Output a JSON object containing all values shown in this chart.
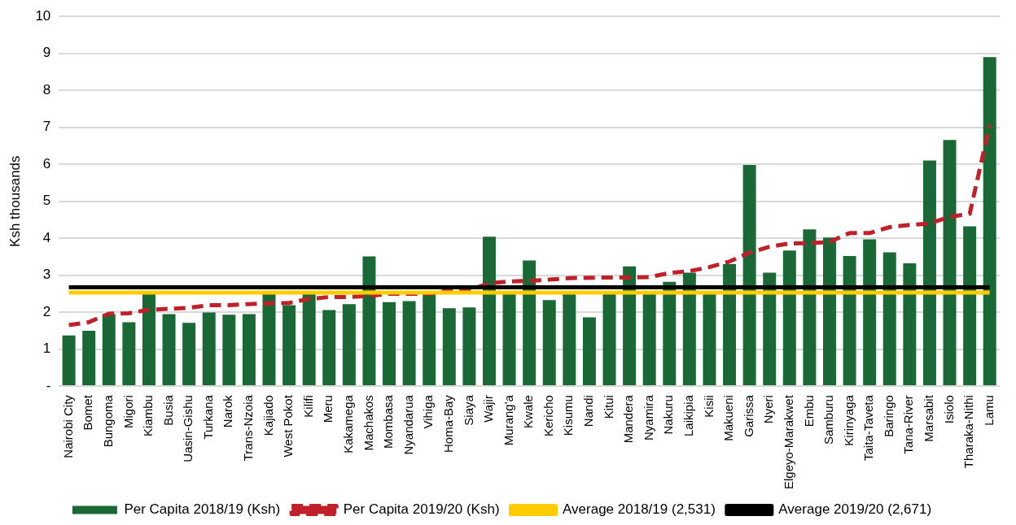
{
  "chart_data": {
    "type": "bar",
    "ylabel": "Ksh thousands",
    "categories": [
      "Nairobi City",
      "Bomet",
      "Bungoma",
      "Migori",
      "Kiambu",
      "Busia",
      "Uasin-Gishu",
      "Turkana",
      "Narok",
      "Trans-Nzoia",
      "Kajiado",
      "West Pokot",
      "Kilifi",
      "Meru",
      "Kakamega",
      "Machakos",
      "Mombasa",
      "Nyandarua",
      "Vihiga",
      "Homa-Bay",
      "Siaya",
      "Wajir",
      "Murang'a",
      "Kwale",
      "Kericho",
      "Kisumu",
      "Nandi",
      "Kitui",
      "Mandera",
      "Nyamira",
      "Nakuru",
      "Laikipia",
      "Kisii",
      "Makueni",
      "Garissa",
      "Nyeri",
      "Elgeyo-Marakwet",
      "Embu",
      "Samburu",
      "Kirinyaga",
      "Taita-Taveta",
      "Baringo",
      "Tana-River",
      "Marsabit",
      "Isiolo",
      "Tharaka-Nithi",
      "Lamu"
    ],
    "series": [
      {
        "name": "Per Capita 2018/19 (Ksh)",
        "color": "#1b6837",
        "values": [
          1.37,
          1.5,
          1.95,
          1.73,
          2.5,
          1.95,
          1.71,
          1.99,
          1.93,
          1.95,
          2.5,
          2.19,
          2.5,
          2.06,
          2.22,
          3.51,
          2.27,
          2.3,
          2.5,
          2.11,
          2.13,
          4.04,
          2.5,
          3.4,
          2.33,
          2.5,
          1.86,
          2.5,
          3.24,
          2.5,
          2.82,
          3.07,
          2.5,
          3.3,
          5.98,
          3.07,
          3.67,
          4.24,
          4.02,
          3.52,
          3.97,
          3.62,
          3.32,
          6.1,
          6.66,
          4.32,
          8.9
        ]
      },
      {
        "name": "Per Capita 2019/20 (Ksh)",
        "type": "line",
        "line_style": "dashed",
        "color": "#c0202a",
        "values": [
          1.65,
          1.73,
          1.96,
          1.97,
          2.07,
          2.09,
          2.12,
          2.19,
          2.19,
          2.22,
          2.24,
          2.25,
          2.36,
          2.41,
          2.41,
          2.44,
          2.5,
          2.5,
          2.5,
          2.59,
          2.6,
          2.78,
          2.83,
          2.85,
          2.88,
          2.92,
          2.93,
          2.94,
          2.94,
          2.95,
          3.06,
          3.11,
          3.22,
          3.37,
          3.61,
          3.77,
          3.86,
          3.87,
          3.9,
          4.14,
          4.14,
          4.3,
          4.36,
          4.4,
          4.58,
          4.66,
          7.07
        ]
      },
      {
        "name": "Average 2018/19 (2,531)",
        "type": "line",
        "line_style": "solid",
        "color": "#ffcc00",
        "values": [
          2.531,
          2.531,
          2.531,
          2.531,
          2.531,
          2.531,
          2.531,
          2.531,
          2.531,
          2.531,
          2.531,
          2.531,
          2.531,
          2.531,
          2.531,
          2.531,
          2.531,
          2.531,
          2.531,
          2.531,
          2.531,
          2.531,
          2.531,
          2.531,
          2.531,
          2.531,
          2.531,
          2.531,
          2.531,
          2.531,
          2.531,
          2.531,
          2.531,
          2.531,
          2.531,
          2.531,
          2.531,
          2.531,
          2.531,
          2.531,
          2.531,
          2.531,
          2.531,
          2.531,
          2.531,
          2.531,
          2.531
        ]
      },
      {
        "name": "Average 2019/20 (2,671)",
        "type": "line",
        "line_style": "solid",
        "color": "#000000",
        "values": [
          2.671,
          2.671,
          2.671,
          2.671,
          2.671,
          2.671,
          2.671,
          2.671,
          2.671,
          2.671,
          2.671,
          2.671,
          2.671,
          2.671,
          2.671,
          2.671,
          2.671,
          2.671,
          2.671,
          2.671,
          2.671,
          2.671,
          2.671,
          2.671,
          2.671,
          2.671,
          2.671,
          2.671,
          2.671,
          2.671,
          2.671,
          2.671,
          2.671,
          2.671,
          2.671,
          2.671,
          2.671,
          2.671,
          2.671,
          2.671,
          2.671,
          2.671,
          2.671,
          2.671,
          2.671,
          2.671,
          2.671
        ]
      }
    ],
    "ylim": [
      0,
      10
    ],
    "yticks": [
      {
        "value": 0,
        "label": "-"
      },
      1,
      2,
      3,
      4,
      5,
      6,
      7,
      8,
      9,
      10
    ],
    "grid": "y",
    "legend": "bottom",
    "marker": "none"
  }
}
